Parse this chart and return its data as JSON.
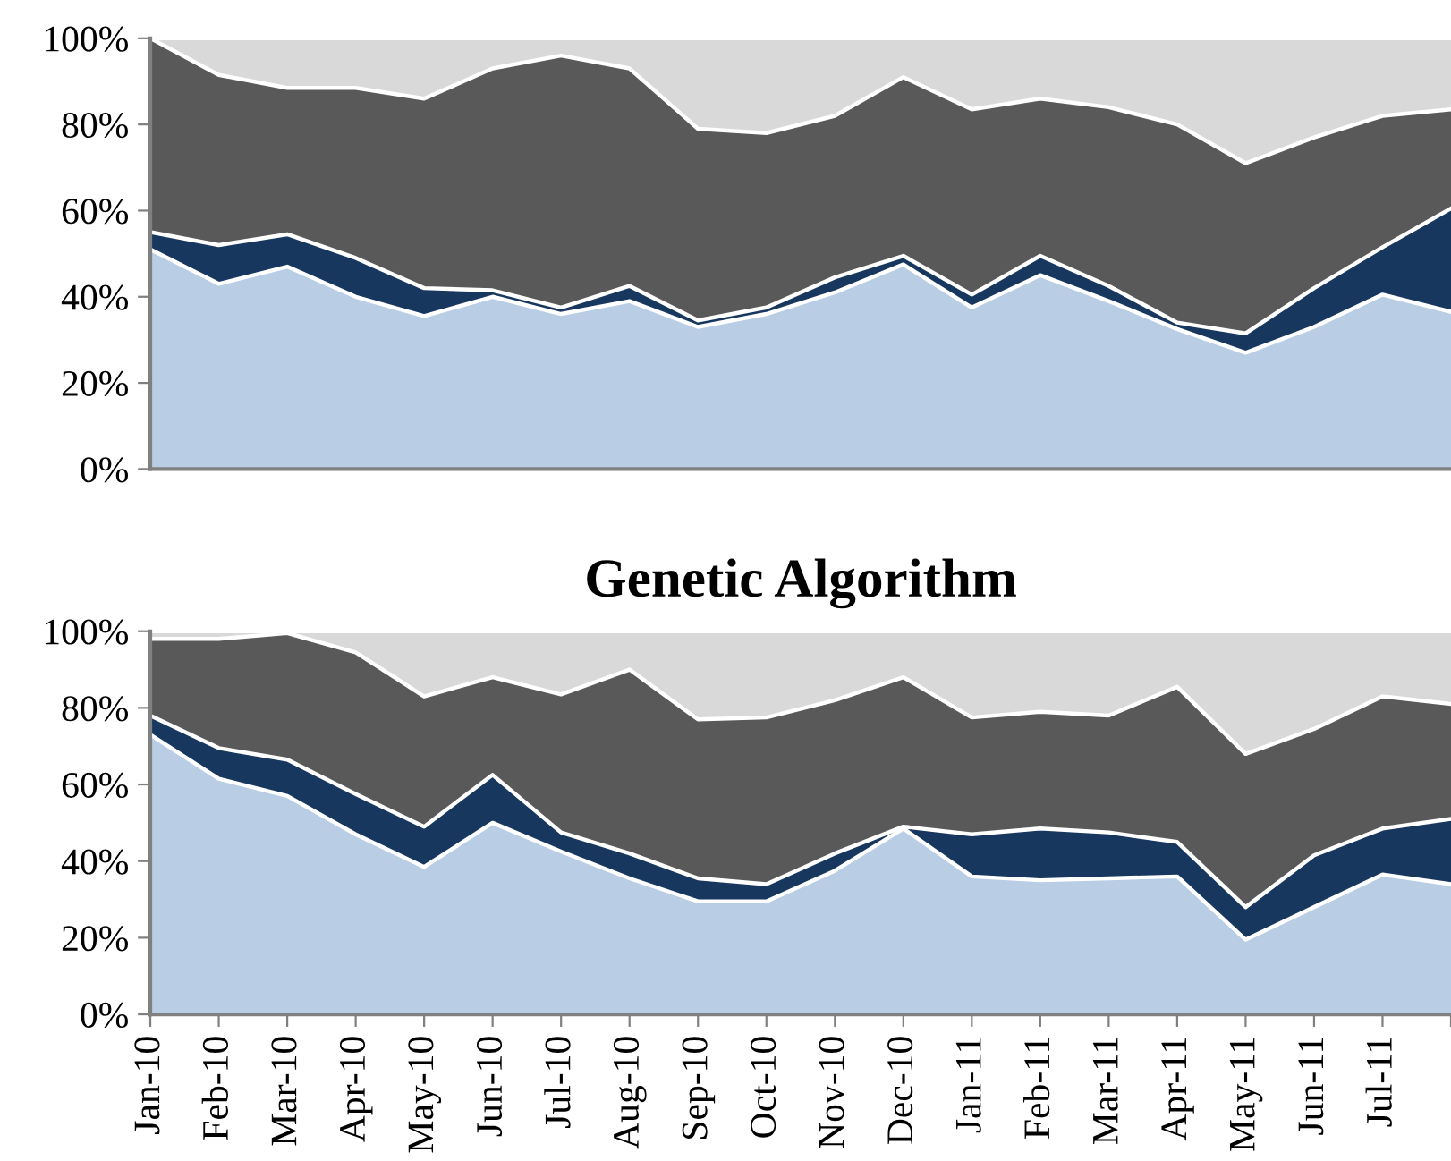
{
  "chart_data": [
    {
      "type": "area",
      "stacked": true,
      "tick_labels": "y",
      "grid": false,
      "legend": false,
      "categories": [
        null,
        null,
        null,
        null,
        null,
        null,
        null,
        null,
        null,
        null,
        null,
        null,
        null,
        null,
        null,
        null,
        null,
        null,
        null,
        null
      ],
      "ylim": [
        0,
        100
      ],
      "yticks": [
        {
          "value": 0,
          "label": "0%"
        },
        {
          "value": 20,
          "label": "20%"
        },
        {
          "value": 40,
          "label": "40%"
        },
        {
          "value": 60,
          "label": "60%"
        },
        {
          "value": 80,
          "label": "80%"
        },
        {
          "value": 100,
          "label": "100%"
        }
      ],
      "series": [
        {
          "color": "#b9cde4",
          "values": [
            51,
            43,
            47,
            40,
            35.5,
            40,
            36,
            39,
            33,
            36,
            41,
            47.5,
            37.5,
            45,
            39,
            32.5,
            27,
            33,
            40.5,
            36.5
          ]
        },
        {
          "color": "#17375e",
          "values": [
            4,
            9,
            7.5,
            9,
            6.5,
            1.5,
            1.5,
            3.5,
            1.5,
            1.5,
            3.5,
            2,
            3,
            4.5,
            3.5,
            1.5,
            4.5,
            9,
            11,
            24
          ]
        },
        {
          "color": "#595959",
          "values": [
            45,
            39.5,
            34,
            39.5,
            44,
            51.5,
            58.5,
            50.5,
            44.5,
            40.5,
            37.5,
            41.5,
            43,
            36.5,
            41.5,
            46,
            39.5,
            35,
            30.5,
            23
          ]
        },
        {
          "color": "#d9d9d9",
          "values": [
            0,
            8.5,
            11.5,
            11.5,
            14,
            7,
            4,
            7,
            21,
            22,
            18,
            9,
            16.5,
            14,
            16,
            20,
            29,
            23,
            18,
            16.5
          ]
        }
      ]
    },
    {
      "type": "area",
      "stacked": true,
      "grid": false,
      "legend": false,
      "title": "Genetic Algorithm",
      "categories": [
        "Jan-10",
        "Feb-10",
        "Mar-10",
        "Apr-10",
        "May-10",
        "Jun-10",
        "Jul-10",
        "Aug-10",
        "Sep-10",
        "Oct-10",
        "Nov-10",
        "Dec-10",
        "Jan-11",
        "Feb-11",
        "Mar-11",
        "Apr-11",
        "May-11",
        "Jun-11",
        "Jul-11",
        null
      ],
      "ylim": [
        0,
        100
      ],
      "yticks": [
        {
          "value": 0,
          "label": "0%"
        },
        {
          "value": 20,
          "label": "20%"
        },
        {
          "value": 40,
          "label": "40%"
        },
        {
          "value": 60,
          "label": "60%"
        },
        {
          "value": 80,
          "label": "80%"
        },
        {
          "value": 100,
          "label": "100%"
        }
      ],
      "series": [
        {
          "color": "#b9cde4",
          "values": [
            73,
            61.5,
            57,
            47,
            38.5,
            50,
            42.5,
            35.5,
            29.5,
            29.5,
            37.5,
            48.5,
            36,
            35,
            35.5,
            36,
            19.5,
            28,
            36.5,
            34
          ]
        },
        {
          "color": "#17375e",
          "values": [
            5,
            8,
            9.5,
            10.5,
            10.5,
            12.5,
            5,
            6.5,
            6,
            4.5,
            4.5,
            0.5,
            11,
            13.5,
            12,
            9,
            8.5,
            13.5,
            12,
            17
          ]
        },
        {
          "color": "#595959",
          "values": [
            20,
            28.5,
            33,
            37,
            34,
            25.5,
            36,
            48,
            41.5,
            43.5,
            40,
            39,
            30.5,
            30.5,
            30.5,
            40.5,
            40,
            33,
            34.5,
            30
          ]
        },
        {
          "color": "#d9d9d9",
          "values": [
            2,
            2,
            0.5,
            5.5,
            17,
            12,
            16.5,
            10,
            23,
            22.5,
            18,
            12,
            22.5,
            21,
            22,
            14.5,
            32,
            25.5,
            17,
            19
          ]
        }
      ]
    }
  ]
}
